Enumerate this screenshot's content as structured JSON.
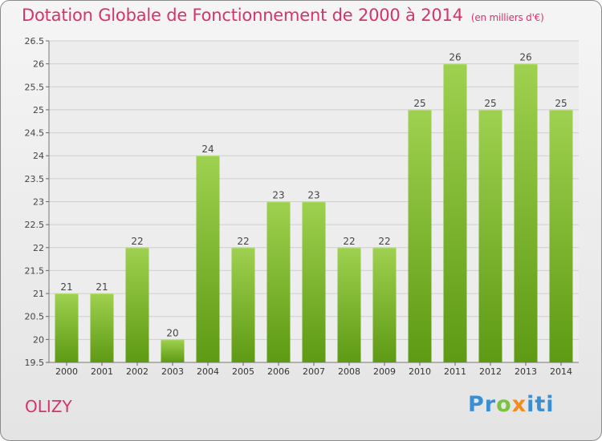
{
  "title": "Dotation Globale de Fonctionnement de 2000 à 2014",
  "subtitle": "(en milliers d'€)",
  "city": "OLIZY",
  "logo": {
    "letters": [
      "P",
      "r",
      "o",
      "x",
      "i",
      "t",
      "i"
    ],
    "colors": [
      "#3a8fd4",
      "#3a8fd4",
      "#7cc242",
      "#f28c1a",
      "#3a8fd4",
      "#3a8fd4",
      "#3a8fd4"
    ]
  },
  "colors": {
    "title": "#d6336c",
    "bar_light": "#9ed14f",
    "bar_dark": "#5e9a14",
    "grid": "#cfcfcf"
  },
  "chart_data": {
    "type": "bar",
    "categories": [
      "2000",
      "2001",
      "2002",
      "2003",
      "2004",
      "2005",
      "2006",
      "2007",
      "2008",
      "2009",
      "2010",
      "2011",
      "2012",
      "2013",
      "2014"
    ],
    "values": [
      21,
      21,
      22,
      20,
      24,
      22,
      23,
      23,
      22,
      22,
      25,
      26,
      25,
      26,
      25
    ],
    "value_labels": [
      "21",
      "21",
      "22",
      "20",
      "24",
      "22",
      "23",
      "23",
      "22",
      "22",
      "25",
      "26",
      "25",
      "26",
      "25"
    ],
    "ylim": [
      19.5,
      26.5
    ],
    "yticks": [
      19.5,
      20,
      20.5,
      21,
      21.5,
      22,
      22.5,
      23,
      23.5,
      24,
      24.5,
      25,
      25.5,
      26,
      26.5
    ],
    "ytick_labels": [
      "19.5",
      "20",
      "20.5",
      "21",
      "21.5",
      "22",
      "22.5",
      "23",
      "23.5",
      "24",
      "24.5",
      "25",
      "25.5",
      "26",
      "26.5"
    ],
    "grid": true,
    "title": "Dotation Globale de Fonctionnement de 2000 à 2014",
    "xlabel": "",
    "ylabel": ""
  }
}
